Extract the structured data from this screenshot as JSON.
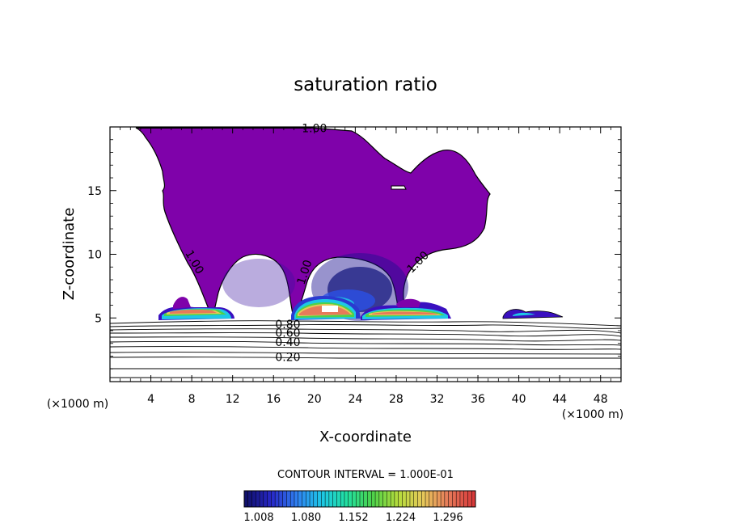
{
  "chart_data": {
    "type": "contour",
    "title": "saturation ratio",
    "xlabel": "X-coordinate",
    "ylabel": "Z-coordinate",
    "x_unit_left": "(×1000 m)",
    "x_unit_right": "(×1000 m)",
    "xlim": [
      0,
      50
    ],
    "ylim": [
      0,
      20
    ],
    "x_ticks": [
      {
        "value": 4,
        "label": "4"
      },
      {
        "value": 8,
        "label": "8"
      },
      {
        "value": 12,
        "label": "12"
      },
      {
        "value": 16,
        "label": "16"
      },
      {
        "value": 20,
        "label": "20"
      },
      {
        "value": 24,
        "label": "24"
      },
      {
        "value": 28,
        "label": "28"
      },
      {
        "value": 32,
        "label": "32"
      },
      {
        "value": 36,
        "label": "36"
      },
      {
        "value": 40,
        "label": "40"
      },
      {
        "value": 44,
        "label": "44"
      },
      {
        "value": 48,
        "label": "48"
      }
    ],
    "y_ticks": [
      {
        "value": 5,
        "label": "5"
      },
      {
        "value": 10,
        "label": "10"
      },
      {
        "value": 15,
        "label": "15"
      }
    ],
    "contour_interval_text": "CONTOUR INTERVAL = 1.000E-01",
    "colorbar_labels": [
      "1.008",
      "1.080",
      "1.152",
      "1.224",
      "1.296"
    ],
    "colorbar_range": [
      1.0,
      1.3
    ],
    "colormap": [
      "#10106a",
      "#2828c8",
      "#2f7ff0",
      "#1ec8e6",
      "#22e0a0",
      "#4cd24a",
      "#b4dc3c",
      "#e6c85a",
      "#e67a5a",
      "#d83a3a"
    ],
    "supersaturated_fill": "#7f02aa",
    "contour_labels": [
      {
        "text": "1.00",
        "x": 20.0,
        "z": 19.9,
        "rotate": 0
      },
      {
        "text": "1.00",
        "x": 8.3,
        "z": 9.4,
        "rotate": 60
      },
      {
        "text": "1.00",
        "x": 19.0,
        "z": 8.6,
        "rotate": -72
      },
      {
        "text": "1.00",
        "x": 30.1,
        "z": 9.4,
        "rotate": -45
      },
      {
        "text": "0.80",
        "x": 17.4,
        "z": 4.5,
        "rotate": 0
      },
      {
        "text": "0.60",
        "x": 17.4,
        "z": 3.85,
        "rotate": 0
      },
      {
        "text": "0.40",
        "x": 17.4,
        "z": 3.1,
        "rotate": 0
      },
      {
        "text": "0.20",
        "x": 17.4,
        "z": 1.95,
        "rotate": 0
      }
    ],
    "grid": false
  }
}
